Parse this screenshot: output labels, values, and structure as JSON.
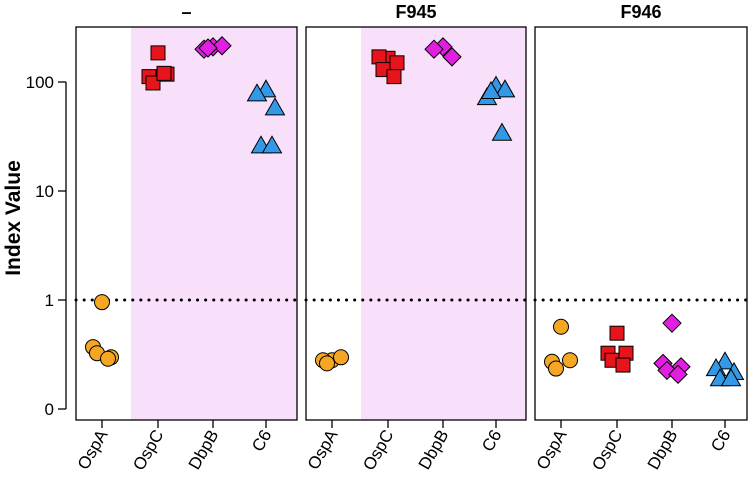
{
  "chart_data": {
    "type": "scatter",
    "ylabel": "Index Value",
    "yscale": "log-like (0 at bottom, then 1, 10, 100)",
    "yticks": [
      "0",
      "1",
      "10",
      "100"
    ],
    "reference_line": {
      "y": 1,
      "style": "dotted"
    },
    "categories": [
      "OspA",
      "OspC",
      "DbpB",
      "C6"
    ],
    "series_colors": {
      "OspA": "#f5a623",
      "OspC": "#e8141b",
      "DbpB": "#e11ee1",
      "C6": "#3399e6"
    },
    "series_markers": {
      "OspA": "circle",
      "OspC": "square",
      "DbpB": "diamond",
      "C6": "triangle"
    },
    "shade_color": "#f9e0fa",
    "panels": [
      {
        "title": "–",
        "shaded_categories": [
          "OspC",
          "DbpB",
          "C6"
        ],
        "points": {
          "OspA": [
            0.95,
            0.3,
            0.22,
            0.25,
            0.21
          ],
          "OspC": [
            185,
            112,
            118,
            98,
            120
          ],
          "DbpB": [
            210,
            200,
            215,
            205
          ],
          "C6": [
            85,
            78,
            58,
            26,
            26
          ]
        }
      },
      {
        "title": "F945",
        "shaded_categories": [
          "OspC",
          "DbpB",
          "C6"
        ],
        "points": {
          "OspA": [
            0.2,
            0.2,
            0.22,
            0.18
          ],
          "OspC": [
            165,
            170,
            150,
            130,
            112
          ],
          "DbpB": [
            210,
            200,
            170
          ],
          "C6": [
            92,
            72,
            85,
            82,
            34
          ]
        }
      },
      {
        "title": "F946",
        "shaded_categories": [],
        "points": {
          "OspA": [
            0.52,
            0.19,
            0.2,
            0.15
          ],
          "OspC": [
            0.44,
            0.25,
            0.25,
            0.2,
            0.17
          ],
          "DbpB": [
            0.57,
            0.18,
            0.16,
            0.14,
            0.12
          ],
          "C6": [
            0.19,
            0.15,
            0.13,
            0.1,
            0.1
          ]
        }
      }
    ]
  }
}
